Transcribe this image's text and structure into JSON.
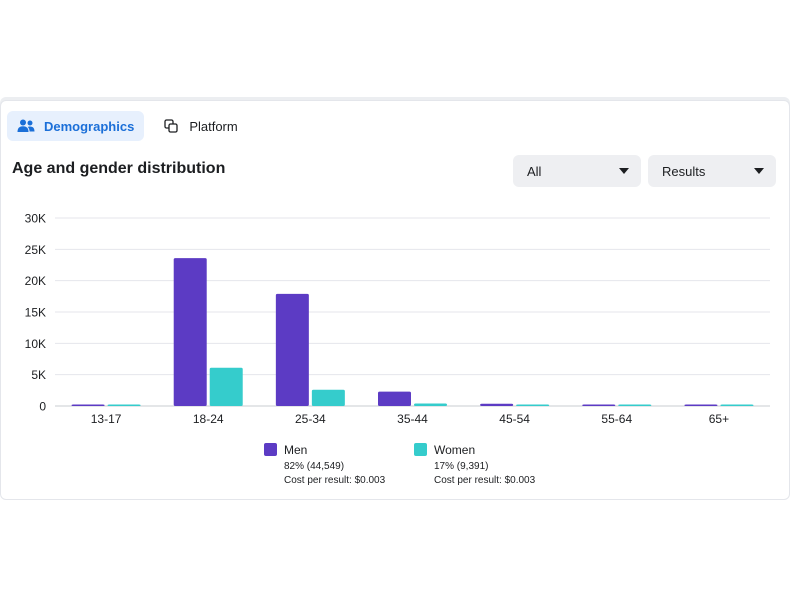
{
  "tabs": [
    {
      "label": "Demographics",
      "icon": "people-icon",
      "active": true
    },
    {
      "label": "Platform",
      "icon": "overlapping-squares-icon",
      "active": false
    }
  ],
  "title": "Age and gender distribution",
  "filters": {
    "audience": "All",
    "metric": "Results"
  },
  "colors": {
    "men": "#5c3bc4",
    "women": "#35cccc",
    "accent": "#1b6fd8",
    "gridline": "#e4e6eb"
  },
  "legend": [
    {
      "name": "Men",
      "detail": "82% (44,549)",
      "cost": "Cost per result: $0.003"
    },
    {
      "name": "Women",
      "detail": "17% (9,391)",
      "cost": "Cost per result: $0.003"
    }
  ],
  "chart_data": {
    "type": "bar",
    "categories": [
      "13-17",
      "18-24",
      "25-34",
      "35-44",
      "45-54",
      "55-64",
      "65+"
    ],
    "series": [
      {
        "name": "Men",
        "values": [
          60,
          23600,
          17900,
          2300,
          350,
          100,
          120
        ]
      },
      {
        "name": "Women",
        "values": [
          40,
          6100,
          2600,
          400,
          90,
          30,
          60
        ]
      }
    ],
    "y_ticks": [
      "0",
      "5K",
      "10K",
      "15K",
      "20K",
      "25K",
      "30K"
    ],
    "ylim": [
      0,
      30000
    ],
    "grid": true,
    "legend_position": "bottom"
  }
}
